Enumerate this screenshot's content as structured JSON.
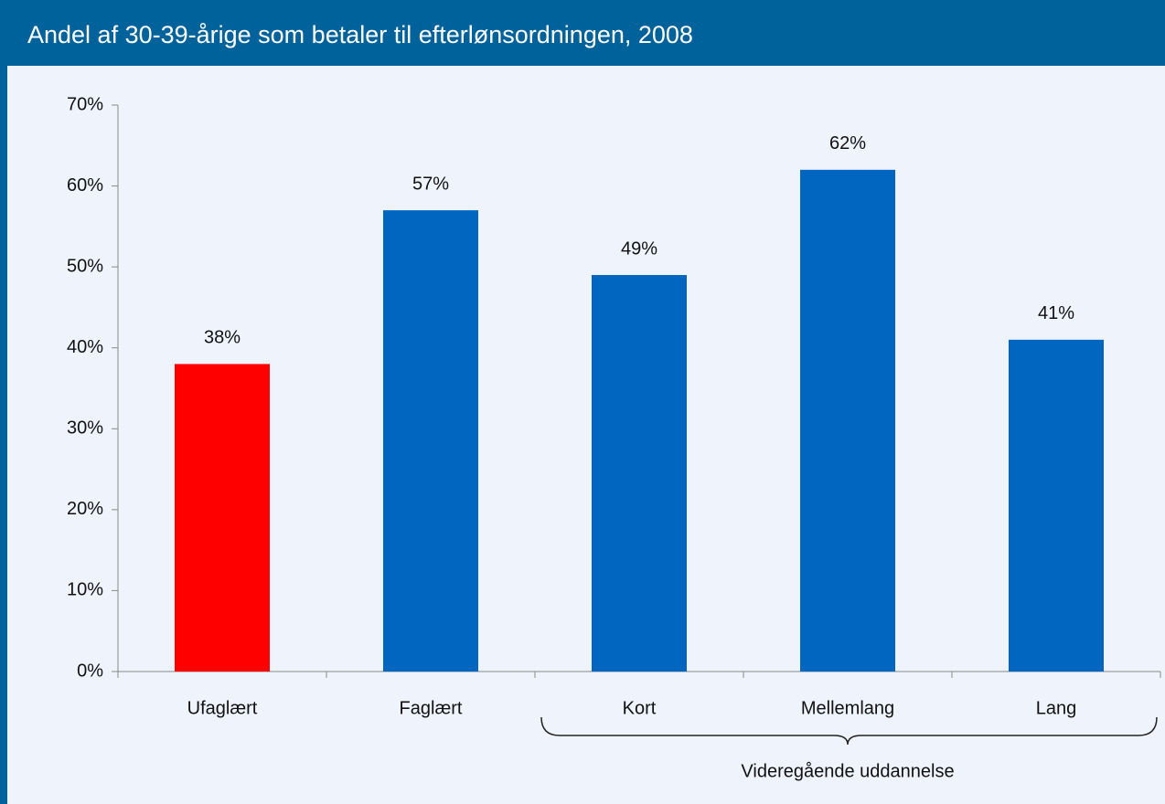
{
  "chart_data": {
    "type": "bar",
    "title": "Andel af 30-39-årige som betaler til efterlønsordningen, 2008",
    "categories": [
      "Ufaglært",
      "Faglært",
      "Kort",
      "Mellemlang",
      "Lang"
    ],
    "values": [
      38,
      57,
      49,
      62,
      41
    ],
    "value_labels": [
      "38%",
      "57%",
      "49%",
      "62%",
      "41%"
    ],
    "colors": [
      "#ff0000",
      "#0066bf",
      "#0066bf",
      "#0066bf",
      "#0066bf"
    ],
    "annotation": "Videregående uddannelse",
    "ylim": [
      0,
      70
    ],
    "yticks": [
      {
        "value": 0,
        "label": "0%"
      },
      {
        "value": 10,
        "label": "10%"
      },
      {
        "value": 20,
        "label": "20%"
      },
      {
        "value": 30,
        "label": "30%"
      },
      {
        "value": 40,
        "label": "40%"
      },
      {
        "value": 50,
        "label": "50%"
      },
      {
        "value": 60,
        "label": "60%"
      },
      {
        "value": 70,
        "label": "70%"
      }
    ],
    "grid": false
  }
}
